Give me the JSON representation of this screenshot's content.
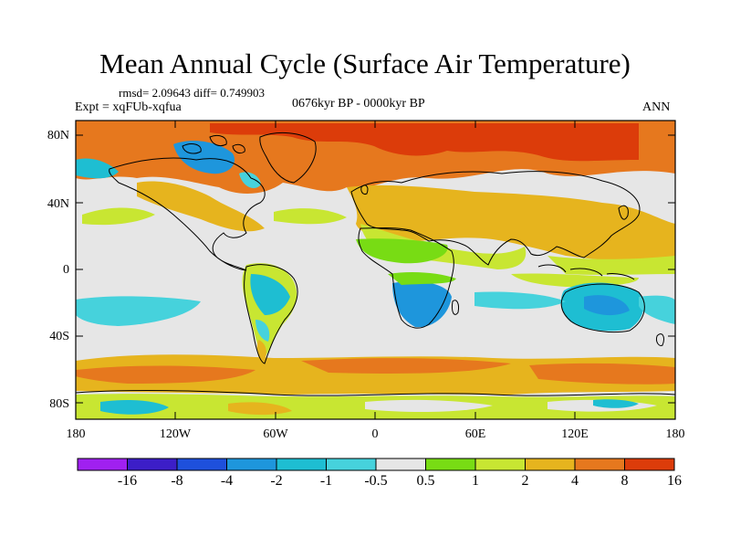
{
  "title": "Mean Annual Cycle (Surface Air Temperature)",
  "stats": "rmsd= 2.09643 diff= 0.749903",
  "experiment": "Expt = xqFUb-xqfua",
  "period": "0676kyr BP - 0000kyr BP",
  "season": "ANN",
  "lat_labels": [
    "80N",
    "40N",
    "0",
    "40S",
    "80S"
  ],
  "lon_labels": [
    "180",
    "120W",
    "60W",
    "0",
    "60E",
    "120E",
    "180"
  ],
  "colorbar": {
    "labels": [
      "-16",
      "-8",
      "-4",
      "-2",
      "-1",
      "-0.5",
      "0.5",
      "1",
      "2",
      "4",
      "8",
      "16"
    ],
    "colors": [
      "#a020f0",
      "#3c1ec8",
      "#1e50dc",
      "#1e96dc",
      "#1ebed2",
      "#46d2dc",
      "#e6e6e6",
      "#78dc14",
      "#c8e632",
      "#e6b41e",
      "#e6781e",
      "#dc3c0a"
    ]
  }
}
